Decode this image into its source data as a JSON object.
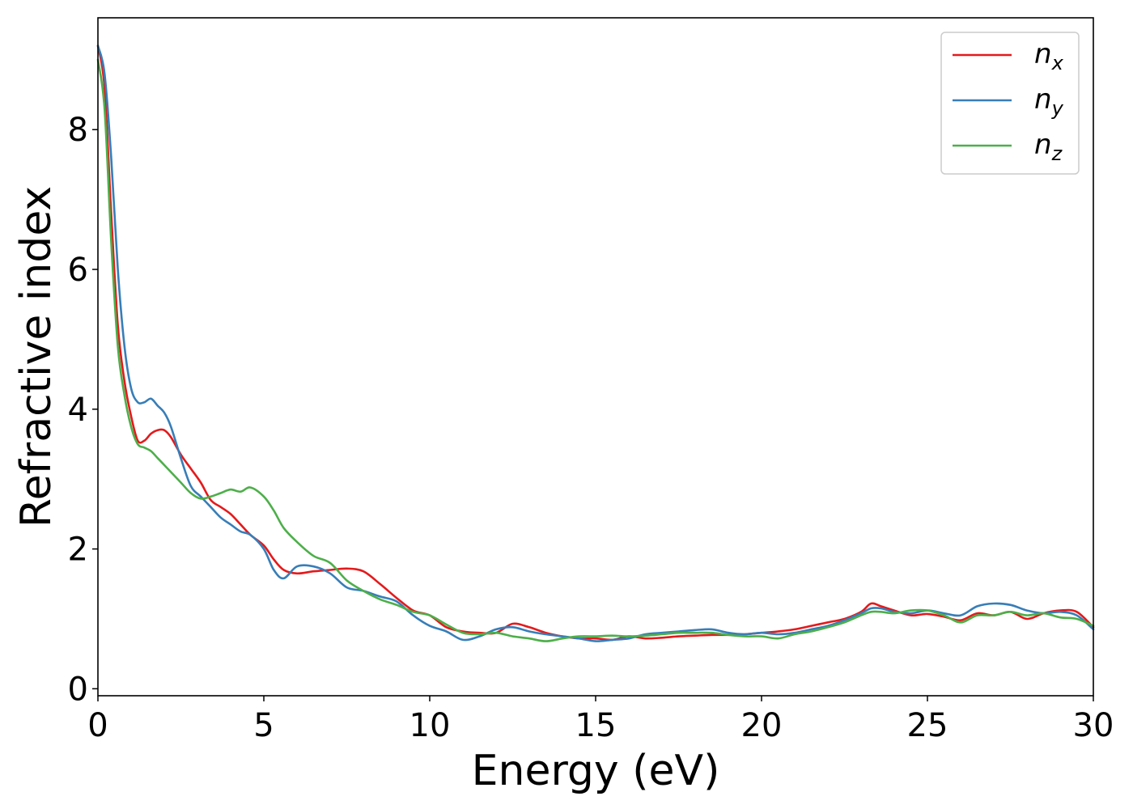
{
  "chart_data": {
    "type": "line",
    "xlabel": "Energy (eV)",
    "ylabel": "Refractive index",
    "xlim": [
      0,
      30
    ],
    "ylim": [
      -0.1,
      9.6
    ],
    "xticks": [
      0,
      5,
      10,
      15,
      20,
      25,
      30
    ],
    "yticks": [
      0,
      2,
      4,
      6,
      8
    ],
    "grid": false,
    "legend_position": "top-right",
    "series": [
      {
        "name": "n",
        "subscript": "x",
        "color": "#e41a1c",
        "x": [
          0,
          0.2,
          0.4,
          0.6,
          0.8,
          1.0,
          1.2,
          1.4,
          1.6,
          1.8,
          2.0,
          2.2,
          2.5,
          2.8,
          3.1,
          3.4,
          3.7,
          4.0,
          4.3,
          4.6,
          5.0,
          5.3,
          5.6,
          6.0,
          6.5,
          7.0,
          7.5,
          8.0,
          8.5,
          9.0,
          9.5,
          10.0,
          10.5,
          11.0,
          11.5,
          12.0,
          12.5,
          13.0,
          13.5,
          14.0,
          14.5,
          15.0,
          15.5,
          16.0,
          16.5,
          17.0,
          17.5,
          18.0,
          18.5,
          19.0,
          19.5,
          20.0,
          20.5,
          21.0,
          21.5,
          22.0,
          22.5,
          23.0,
          23.3,
          23.6,
          24.0,
          24.5,
          25.0,
          25.5,
          26.0,
          26.5,
          27.0,
          27.5,
          28.0,
          28.5,
          29.0,
          29.5,
          30.0
        ],
        "y": [
          9.2,
          8.6,
          6.8,
          5.2,
          4.4,
          3.9,
          3.55,
          3.55,
          3.65,
          3.7,
          3.7,
          3.6,
          3.35,
          3.15,
          2.95,
          2.7,
          2.6,
          2.5,
          2.35,
          2.2,
          2.05,
          1.85,
          1.7,
          1.65,
          1.68,
          1.7,
          1.72,
          1.68,
          1.5,
          1.3,
          1.12,
          1.05,
          0.88,
          0.82,
          0.8,
          0.8,
          0.93,
          0.88,
          0.8,
          0.75,
          0.72,
          0.72,
          0.7,
          0.75,
          0.72,
          0.73,
          0.75,
          0.76,
          0.77,
          0.77,
          0.78,
          0.8,
          0.82,
          0.85,
          0.9,
          0.95,
          1.0,
          1.1,
          1.22,
          1.18,
          1.12,
          1.05,
          1.07,
          1.03,
          0.98,
          1.08,
          1.05,
          1.1,
          1.0,
          1.08,
          1.12,
          1.1,
          0.88
        ]
      },
      {
        "name": "n",
        "subscript": "y",
        "color": "#377eb8",
        "x": [
          0,
          0.2,
          0.4,
          0.6,
          0.8,
          1.0,
          1.2,
          1.4,
          1.6,
          1.8,
          2.0,
          2.2,
          2.5,
          2.8,
          3.1,
          3.4,
          3.7,
          4.0,
          4.3,
          4.6,
          5.0,
          5.3,
          5.6,
          6.0,
          6.5,
          7.0,
          7.5,
          8.0,
          8.5,
          9.0,
          9.5,
          10.0,
          10.5,
          11.0,
          11.5,
          12.0,
          12.5,
          13.0,
          13.5,
          14.0,
          14.5,
          15.0,
          15.5,
          16.0,
          16.5,
          17.0,
          17.5,
          18.0,
          18.5,
          19.0,
          19.5,
          20.0,
          20.5,
          21.0,
          21.5,
          22.0,
          22.5,
          23.0,
          23.3,
          23.6,
          24.0,
          24.5,
          25.0,
          25.5,
          26.0,
          26.5,
          27.0,
          27.5,
          28.0,
          28.5,
          29.0,
          29.5,
          30.0
        ],
        "y": [
          9.2,
          8.8,
          7.6,
          6.0,
          4.9,
          4.3,
          4.1,
          4.1,
          4.15,
          4.05,
          3.95,
          3.75,
          3.3,
          2.9,
          2.75,
          2.6,
          2.45,
          2.35,
          2.25,
          2.2,
          2.0,
          1.7,
          1.58,
          1.75,
          1.75,
          1.65,
          1.45,
          1.4,
          1.32,
          1.25,
          1.05,
          0.9,
          0.82,
          0.7,
          0.75,
          0.85,
          0.88,
          0.82,
          0.78,
          0.75,
          0.72,
          0.68,
          0.7,
          0.72,
          0.78,
          0.8,
          0.82,
          0.84,
          0.85,
          0.8,
          0.78,
          0.8,
          0.78,
          0.8,
          0.85,
          0.9,
          0.98,
          1.08,
          1.15,
          1.15,
          1.1,
          1.08,
          1.12,
          1.08,
          1.05,
          1.18,
          1.22,
          1.2,
          1.12,
          1.08,
          1.1,
          1.05,
          0.85
        ]
      },
      {
        "name": "n",
        "subscript": "z",
        "color": "#4daf4a",
        "x": [
          0,
          0.2,
          0.4,
          0.6,
          0.8,
          1.0,
          1.2,
          1.4,
          1.6,
          1.8,
          2.0,
          2.2,
          2.5,
          2.8,
          3.1,
          3.4,
          3.7,
          4.0,
          4.3,
          4.6,
          5.0,
          5.3,
          5.6,
          6.0,
          6.5,
          7.0,
          7.5,
          8.0,
          8.5,
          9.0,
          9.5,
          10.0,
          10.5,
          11.0,
          11.5,
          12.0,
          12.5,
          13.0,
          13.5,
          14.0,
          14.5,
          15.0,
          15.5,
          16.0,
          16.5,
          17.0,
          17.5,
          18.0,
          18.5,
          19.0,
          19.5,
          20.0,
          20.5,
          21.0,
          21.5,
          22.0,
          22.5,
          23.0,
          23.3,
          23.6,
          24.0,
          24.5,
          25.0,
          25.5,
          26.0,
          26.5,
          27.0,
          27.5,
          28.0,
          28.5,
          29.0,
          29.5,
          30.0
        ],
        "y": [
          9.0,
          8.3,
          6.4,
          4.9,
          4.2,
          3.75,
          3.5,
          3.45,
          3.4,
          3.3,
          3.2,
          3.1,
          2.95,
          2.8,
          2.72,
          2.75,
          2.8,
          2.85,
          2.82,
          2.88,
          2.75,
          2.55,
          2.3,
          2.1,
          1.9,
          1.8,
          1.55,
          1.4,
          1.28,
          1.2,
          1.1,
          1.05,
          0.92,
          0.8,
          0.78,
          0.8,
          0.75,
          0.72,
          0.68,
          0.72,
          0.75,
          0.75,
          0.76,
          0.75,
          0.76,
          0.78,
          0.8,
          0.8,
          0.8,
          0.77,
          0.75,
          0.75,
          0.72,
          0.78,
          0.82,
          0.88,
          0.95,
          1.05,
          1.1,
          1.1,
          1.08,
          1.12,
          1.12,
          1.05,
          0.95,
          1.05,
          1.05,
          1.1,
          1.05,
          1.08,
          1.02,
          1.0,
          0.9
        ]
      }
    ]
  }
}
